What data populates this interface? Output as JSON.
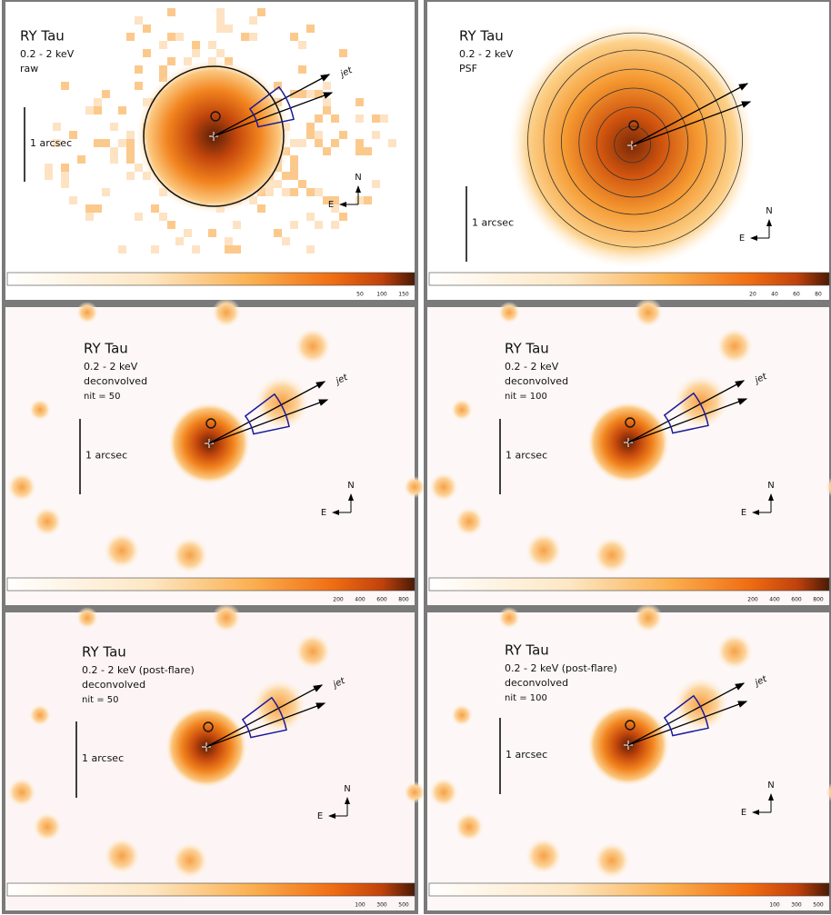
{
  "panels": [
    {
      "title": "RY Tau",
      "energy": "0.2 - 2 keV",
      "labels": [
        "raw"
      ],
      "scale": "1 arcsec",
      "jet": "jet",
      "north": "N",
      "east": "E",
      "colorbar_ticks": [
        "50",
        "100",
        "150"
      ]
    },
    {
      "title": "RY Tau",
      "energy": "0.2 - 2 keV",
      "labels": [
        "PSF"
      ],
      "scale": "1 arcsec",
      "north": "N",
      "east": "E",
      "colorbar_ticks": [
        "20",
        "40",
        "60",
        "80"
      ]
    },
    {
      "title": "RY Tau",
      "energy": "0.2 - 2 keV",
      "labels": [
        "deconvolved",
        "nit = 50"
      ],
      "scale": "1 arcsec",
      "jet": "jet",
      "north": "N",
      "east": "E",
      "colorbar_ticks": [
        "200",
        "400",
        "600",
        "800"
      ]
    },
    {
      "title": "RY Tau",
      "energy": "0.2 - 2 keV",
      "labels": [
        "deconvolved",
        "nit = 100"
      ],
      "scale": "1 arcsec",
      "jet": "jet",
      "north": "N",
      "east": "E",
      "colorbar_ticks": [
        "200",
        "400",
        "600",
        "800"
      ]
    },
    {
      "title": "RY Tau",
      "energy": "0.2 - 2 keV (post-flare)",
      "labels": [
        "deconvolved",
        "nit = 50"
      ],
      "scale": "1 arcsec",
      "jet": "jet",
      "north": "N",
      "east": "E",
      "colorbar_ticks": [
        "100",
        "300",
        "500"
      ]
    },
    {
      "title": "RY Tau",
      "energy": "0.2 - 2 keV (post-flare)",
      "labels": [
        "deconvolved",
        "nit = 100"
      ],
      "scale": "1 arcsec",
      "jet": "jet",
      "north": "N",
      "east": "E",
      "colorbar_ticks": [
        "100",
        "300",
        "500"
      ]
    }
  ]
}
